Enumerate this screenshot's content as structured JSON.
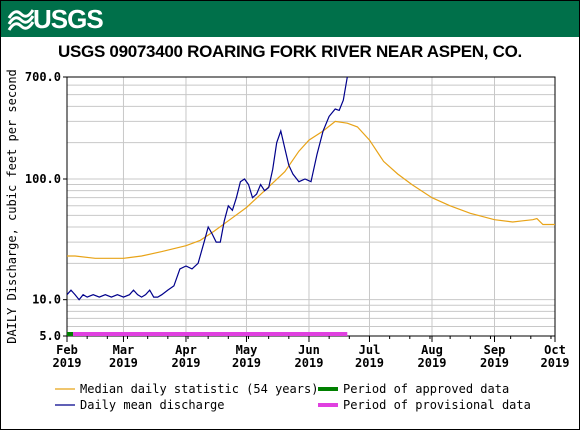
{
  "banner": {
    "logo_text": "USGS",
    "color": "#00704a"
  },
  "chart_data": {
    "type": "line",
    "title": "USGS 09073400 ROARING FORK RIVER NEAR ASPEN, CO.",
    "ylabel": "DAILY Discharge, cubic feet per second",
    "yscale": "log",
    "ylim": [
      5.0,
      700.0
    ],
    "y_tick_labels": [
      {
        "value": 5.0,
        "label": "5.0"
      },
      {
        "value": 10,
        "label": "10.0"
      },
      {
        "value": 100,
        "label": "100.0"
      },
      {
        "value": 700,
        "label": "700.0"
      }
    ],
    "x_range": [
      "2019-02-01",
      "2019-10-01"
    ],
    "x_tick_labels": [
      {
        "date": "2019-02-01",
        "month": "Feb",
        "year": "2019"
      },
      {
        "date": "2019-03-01",
        "month": "Mar",
        "year": "2019"
      },
      {
        "date": "2019-04-01",
        "month": "Apr",
        "year": "2019"
      },
      {
        "date": "2019-05-01",
        "month": "May",
        "year": "2019"
      },
      {
        "date": "2019-06-01",
        "month": "Jun",
        "year": "2019"
      },
      {
        "date": "2019-07-01",
        "month": "Jul",
        "year": "2019"
      },
      {
        "date": "2019-08-01",
        "month": "Aug",
        "year": "2019"
      },
      {
        "date": "2019-09-01",
        "month": "Sep",
        "year": "2019"
      },
      {
        "date": "2019-10-01",
        "month": "Oct",
        "year": "2019"
      }
    ],
    "grid": true,
    "series": [
      {
        "name": "Median daily statistic (54 years)",
        "color": "#e8a317",
        "points": [
          [
            "2019-02-01",
            23
          ],
          [
            "2019-02-05",
            23
          ],
          [
            "2019-02-15",
            22
          ],
          [
            "2019-03-01",
            22
          ],
          [
            "2019-03-10",
            23
          ],
          [
            "2019-03-20",
            25
          ],
          [
            "2019-04-01",
            28
          ],
          [
            "2019-04-08",
            31
          ],
          [
            "2019-04-15",
            37
          ],
          [
            "2019-04-22",
            45
          ],
          [
            "2019-05-01",
            58
          ],
          [
            "2019-05-10",
            80
          ],
          [
            "2019-05-20",
            115
          ],
          [
            "2019-05-27",
            170
          ],
          [
            "2019-06-01",
            210
          ],
          [
            "2019-06-08",
            250
          ],
          [
            "2019-06-14",
            300
          ],
          [
            "2019-06-20",
            290
          ],
          [
            "2019-06-25",
            270
          ],
          [
            "2019-07-01",
            210
          ],
          [
            "2019-07-08",
            140
          ],
          [
            "2019-07-15",
            110
          ],
          [
            "2019-07-22",
            90
          ],
          [
            "2019-08-01",
            70
          ],
          [
            "2019-08-10",
            60
          ],
          [
            "2019-08-20",
            52
          ],
          [
            "2019-09-01",
            46
          ],
          [
            "2019-09-10",
            44
          ],
          [
            "2019-09-15",
            45
          ],
          [
            "2019-09-20",
            46
          ],
          [
            "2019-09-22",
            47
          ],
          [
            "2019-09-25",
            42
          ],
          [
            "2019-10-01",
            42
          ]
        ]
      },
      {
        "name": "Daily mean discharge",
        "color": "#00008b",
        "points": [
          [
            "2019-02-01",
            11
          ],
          [
            "2019-02-03",
            12
          ],
          [
            "2019-02-05",
            11
          ],
          [
            "2019-02-07",
            10
          ],
          [
            "2019-02-09",
            11
          ],
          [
            "2019-02-11",
            10.5
          ],
          [
            "2019-02-14",
            11
          ],
          [
            "2019-02-17",
            10.5
          ],
          [
            "2019-02-20",
            11
          ],
          [
            "2019-02-23",
            10.5
          ],
          [
            "2019-02-26",
            11
          ],
          [
            "2019-03-01",
            10.5
          ],
          [
            "2019-03-04",
            11
          ],
          [
            "2019-03-06",
            12
          ],
          [
            "2019-03-08",
            11
          ],
          [
            "2019-03-10",
            10.5
          ],
          [
            "2019-03-12",
            11
          ],
          [
            "2019-03-14",
            12
          ],
          [
            "2019-03-16",
            10.5
          ],
          [
            "2019-03-18",
            10.5
          ],
          [
            "2019-03-20",
            11
          ],
          [
            "2019-03-23",
            12
          ],
          [
            "2019-03-26",
            13
          ],
          [
            "2019-03-29",
            18
          ],
          [
            "2019-04-01",
            19
          ],
          [
            "2019-04-04",
            18
          ],
          [
            "2019-04-07",
            20
          ],
          [
            "2019-04-10",
            30
          ],
          [
            "2019-04-12",
            40
          ],
          [
            "2019-04-14",
            35
          ],
          [
            "2019-04-16",
            30
          ],
          [
            "2019-04-18",
            30
          ],
          [
            "2019-04-20",
            45
          ],
          [
            "2019-04-22",
            60
          ],
          [
            "2019-04-24",
            55
          ],
          [
            "2019-04-26",
            70
          ],
          [
            "2019-04-28",
            95
          ],
          [
            "2019-04-30",
            100
          ],
          [
            "2019-05-02",
            90
          ],
          [
            "2019-05-04",
            70
          ],
          [
            "2019-05-06",
            75
          ],
          [
            "2019-05-08",
            90
          ],
          [
            "2019-05-10",
            80
          ],
          [
            "2019-05-12",
            85
          ],
          [
            "2019-05-14",
            120
          ],
          [
            "2019-05-16",
            200
          ],
          [
            "2019-05-18",
            250
          ],
          [
            "2019-05-20",
            180
          ],
          [
            "2019-05-22",
            130
          ],
          [
            "2019-05-24",
            110
          ],
          [
            "2019-05-27",
            95
          ],
          [
            "2019-05-30",
            100
          ],
          [
            "2019-06-02",
            95
          ],
          [
            "2019-06-05",
            160
          ],
          [
            "2019-06-08",
            250
          ],
          [
            "2019-06-11",
            330
          ],
          [
            "2019-06-14",
            380
          ],
          [
            "2019-06-16",
            370
          ],
          [
            "2019-06-18",
            450
          ],
          [
            "2019-06-20",
            700
          ]
        ]
      }
    ],
    "period_bars": [
      {
        "name": "Period of approved data",
        "color": "#008000",
        "start": "2019-02-01",
        "end": "2019-02-04"
      },
      {
        "name": "Period of provisional data",
        "color": "#e040e0",
        "start": "2019-02-04",
        "end": "2019-06-20"
      }
    ],
    "legend": {
      "placement": "bottom",
      "items": [
        {
          "label": "Median daily statistic (54 years)",
          "color": "#e8a317",
          "style": "line"
        },
        {
          "label": "Daily mean discharge",
          "color": "#00008b",
          "style": "line"
        },
        {
          "label": "Period of approved data",
          "color": "#008000",
          "style": "bar"
        },
        {
          "label": "Period of provisional data",
          "color": "#e040e0",
          "style": "bar"
        }
      ]
    }
  }
}
